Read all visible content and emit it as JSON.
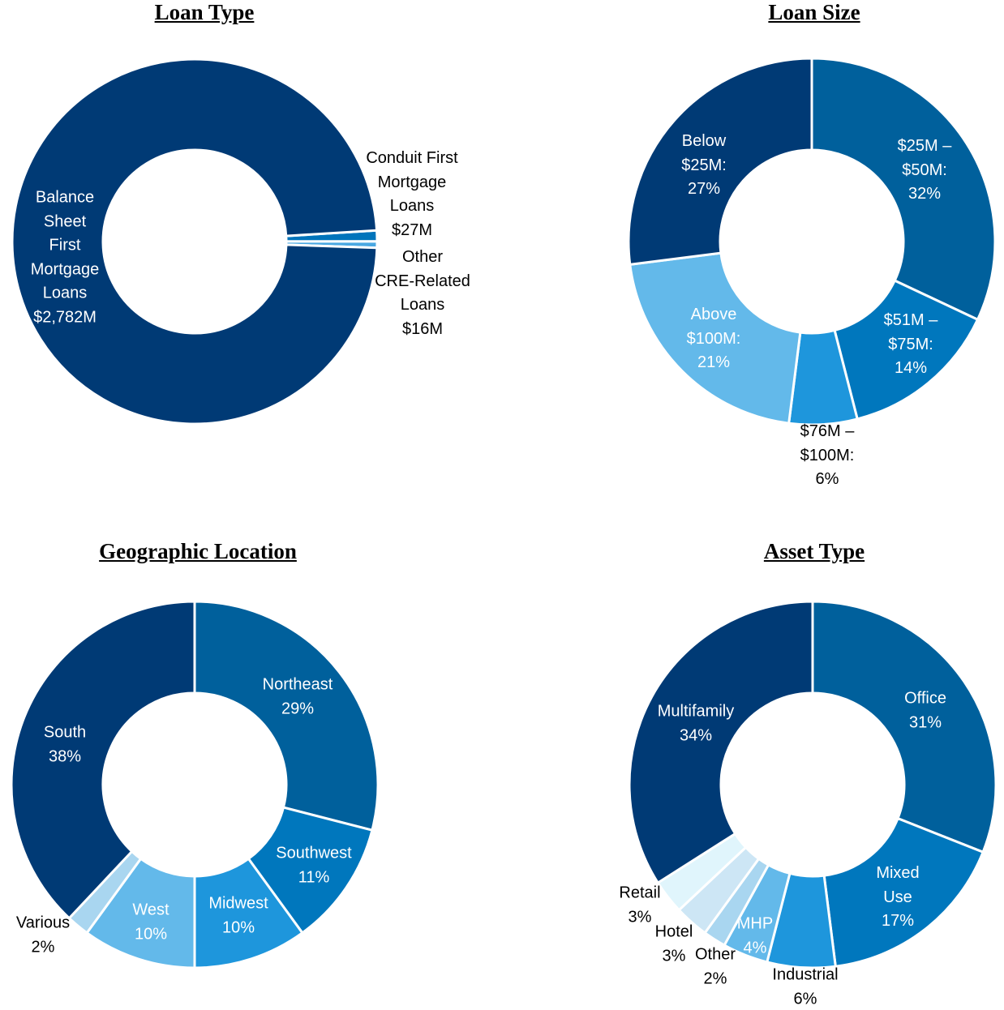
{
  "chart_data": [
    {
      "type": "pie",
      "title": "Loan Type",
      "donut": true,
      "slices": [
        {
          "label": "Conduit First\nMortgage\nLoans\n$27M",
          "name": "Conduit First Mortgage Loans",
          "value": 27,
          "unit": "$M",
          "color": "#0074bb"
        },
        {
          "label": "Other\nCRE-Related\nLoans\n$16M",
          "name": "Other CRE-Related Loans",
          "value": 16,
          "unit": "$M",
          "color": "#4aa8e2"
        },
        {
          "label": "Balance\nSheet\nFirst\nMortgage\nLoans\n$2,782M",
          "name": "Balance Sheet First Mortgage Loans",
          "value": 2782,
          "unit": "$M",
          "color": "#003a75"
        }
      ]
    },
    {
      "type": "pie",
      "title": "Loan Size",
      "donut": true,
      "slices": [
        {
          "label": "$25M –\n$50M:\n32%",
          "value": 32,
          "color": "#00609c"
        },
        {
          "label": "$51M –\n$75M:\n14%",
          "value": 14,
          "color": "#0077bd"
        },
        {
          "label": "$76M –\n$100M:\n6%",
          "value": 6,
          "color": "#1e96dc"
        },
        {
          "label": "Above\n$100M:\n21%",
          "value": 21,
          "color": "#63b9ea"
        },
        {
          "label": "Below\n$25M:\n27%",
          "value": 27,
          "color": "#003a75"
        }
      ]
    },
    {
      "type": "pie",
      "title": "Geographic Location",
      "donut": true,
      "slices": [
        {
          "label": "Northeast\n29%",
          "value": 29,
          "color": "#00609c"
        },
        {
          "label": "Southwest\n11%",
          "value": 11,
          "color": "#0077bd"
        },
        {
          "label": "Midwest\n10%",
          "value": 10,
          "color": "#1e96dc"
        },
        {
          "label": "West\n10%",
          "value": 10,
          "color": "#63b9ea"
        },
        {
          "label": "Various\n2%",
          "value": 2,
          "color": "#a9d6f0"
        },
        {
          "label": "South\n38%",
          "value": 38,
          "color": "#003a75"
        }
      ]
    },
    {
      "type": "pie",
      "title": "Asset Type",
      "donut": true,
      "slices": [
        {
          "label": "Office\n31%",
          "value": 31,
          "color": "#00609c"
        },
        {
          "label": "Mixed\nUse\n17%",
          "value": 17,
          "color": "#0077bd"
        },
        {
          "label": "Industrial\n6%",
          "value": 6,
          "color": "#1e96dc"
        },
        {
          "label": "MHP\n4%",
          "value": 4,
          "color": "#63b9ea"
        },
        {
          "label": "Other\n2%",
          "value": 2,
          "color": "#a9d6f0"
        },
        {
          "label": "Hotel\n3%",
          "value": 3,
          "color": "#cde6f5"
        },
        {
          "label": "Retail\n3%",
          "value": 3,
          "color": "#e0f5fc"
        },
        {
          "label": "Multifamily\n34%",
          "value": 34,
          "color": "#003a75"
        }
      ]
    }
  ]
}
